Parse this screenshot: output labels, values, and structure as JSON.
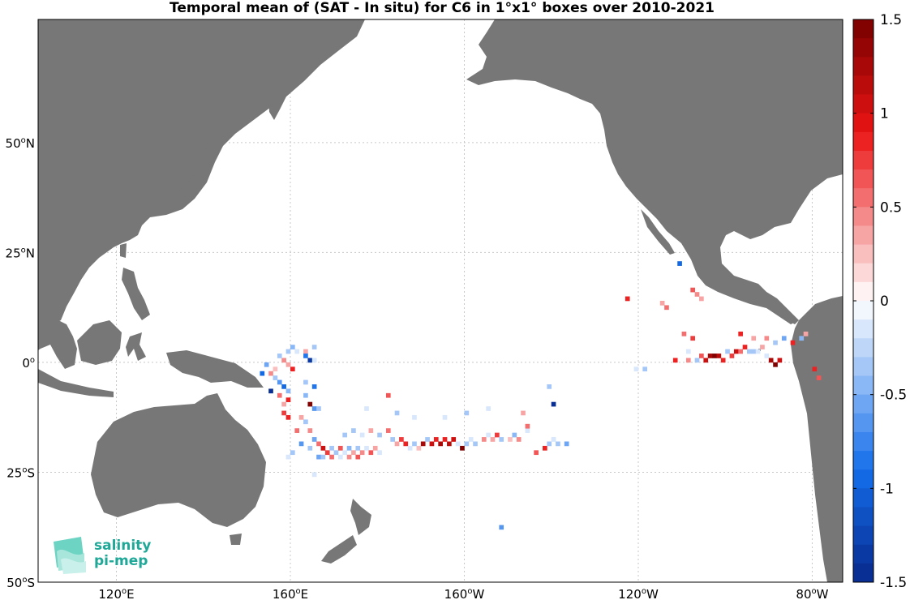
{
  "title": "Temporal mean of (SAT - In situ) for C6 in 1°x1° boxes over 2010-2021",
  "map": {
    "projection": "equirectangular",
    "lon_range": [
      102,
      287
    ],
    "lat_range": [
      -50,
      78
    ],
    "land_color": "#777777",
    "ocean_color": "#ffffff",
    "grid": true,
    "lat_ticks": [
      {
        "value": 50,
        "deg": "50",
        "hemi": "N"
      },
      {
        "value": 25,
        "deg": "25",
        "hemi": "N"
      },
      {
        "value": 0,
        "deg": "0",
        "hemi": ""
      },
      {
        "value": -25,
        "deg": "25",
        "hemi": "S"
      },
      {
        "value": -50,
        "deg": "50",
        "hemi": "S"
      }
    ],
    "lon_ticks": [
      {
        "value": 120,
        "deg": "120",
        "hemi": "E"
      },
      {
        "value": 160,
        "deg": "160",
        "hemi": "E"
      },
      {
        "value": 200,
        "deg": "160",
        "hemi": "W"
      },
      {
        "value": 240,
        "deg": "120",
        "hemi": "W"
      },
      {
        "value": 280,
        "deg": "80",
        "hemi": "W"
      }
    ]
  },
  "colorbar": {
    "min": -1.5,
    "max": 1.5,
    "levels": 30,
    "colormap": "blue-white-red",
    "negative_color": "#08288c",
    "positive_color": "#780000",
    "tick_values": [
      1.5,
      1,
      0.5,
      0,
      -0.5,
      -1,
      -1.5
    ],
    "tick_labels": [
      "1.5",
      "1",
      "0.5",
      "0",
      "-0.5",
      "-1",
      "-1.5"
    ]
  },
  "boxes": [
    {
      "lon": 159.5,
      "lat": 2.5,
      "v": -0.3
    },
    {
      "lon": 160.5,
      "lat": 3.5,
      "v": -0.5
    },
    {
      "lon": 161.5,
      "lat": 2.5,
      "v": -0.2
    },
    {
      "lon": 163.5,
      "lat": 2.5,
      "v": 0.3
    },
    {
      "lon": 163.5,
      "lat": 1.5,
      "v": -0.8
    },
    {
      "lon": 164.5,
      "lat": 0.5,
      "v": -1.4
    },
    {
      "lon": 165.5,
      "lat": 3.5,
      "v": -0.4
    },
    {
      "lon": 165.5,
      "lat": 0.5,
      "v": -0.2
    },
    {
      "lon": 158.5,
      "lat": 0.5,
      "v": 0.4
    },
    {
      "lon": 157.5,
      "lat": 1.5,
      "v": -0.3
    },
    {
      "lon": 159.5,
      "lat": -0.5,
      "v": 0.3
    },
    {
      "lon": 160.5,
      "lat": -1.5,
      "v": 0.9
    },
    {
      "lon": 156.5,
      "lat": -1.5,
      "v": 0.2
    },
    {
      "lon": 154.5,
      "lat": -0.5,
      "v": -0.6
    },
    {
      "lon": 153.5,
      "lat": -2.5,
      "v": -0.9
    },
    {
      "lon": 155.5,
      "lat": -2.5,
      "v": 0.4
    },
    {
      "lon": 156.5,
      "lat": -3.5,
      "v": -0.4
    },
    {
      "lon": 157.5,
      "lat": -4.5,
      "v": -0.7
    },
    {
      "lon": 158.5,
      "lat": -5.5,
      "v": -1.0
    },
    {
      "lon": 159.5,
      "lat": -6.5,
      "v": -0.5
    },
    {
      "lon": 155.5,
      "lat": -6.5,
      "v": -1.5
    },
    {
      "lon": 157.5,
      "lat": -7.5,
      "v": 0.5
    },
    {
      "lon": 159.5,
      "lat": -8.5,
      "v": 0.9
    },
    {
      "lon": 158.5,
      "lat": -9.5,
      "v": 0.3
    },
    {
      "lon": 158.5,
      "lat": -11.5,
      "v": 0.7
    },
    {
      "lon": 159.5,
      "lat": -12.5,
      "v": 0.9
    },
    {
      "lon": 163.5,
      "lat": -4.5,
      "v": -0.4
    },
    {
      "lon": 165.5,
      "lat": -5.5,
      "v": -0.8
    },
    {
      "lon": 163.5,
      "lat": -7.5,
      "v": -0.5
    },
    {
      "lon": 165.5,
      "lat": -10.5,
      "v": -0.7
    },
    {
      "lon": 164.5,
      "lat": -9.5,
      "v": 1.4
    },
    {
      "lon": 166.5,
      "lat": -10.5,
      "v": -0.3
    },
    {
      "lon": 162.5,
      "lat": -12.5,
      "v": 0.3
    },
    {
      "lon": 163.5,
      "lat": -13.5,
      "v": -0.4
    },
    {
      "lon": 161.5,
      "lat": -15.5,
      "v": 0.5
    },
    {
      "lon": 164.5,
      "lat": -15.5,
      "v": 0.4
    },
    {
      "lon": 165.5,
      "lat": -17.5,
      "v": -0.6
    },
    {
      "lon": 166.5,
      "lat": -18.5,
      "v": 0.5
    },
    {
      "lon": 167.5,
      "lat": -19.5,
      "v": 1.0
    },
    {
      "lon": 168.5,
      "lat": -20.5,
      "v": 0.7
    },
    {
      "lon": 169.5,
      "lat": -19.5,
      "v": -0.4
    },
    {
      "lon": 170.5,
      "lat": -20.5,
      "v": -0.3
    },
    {
      "lon": 171.5,
      "lat": -19.5,
      "v": 0.6
    },
    {
      "lon": 172.5,
      "lat": -20.5,
      "v": -0.2
    },
    {
      "lon": 173.5,
      "lat": -19.5,
      "v": -0.5
    },
    {
      "lon": 174.5,
      "lat": -20.5,
      "v": 0.3
    },
    {
      "lon": 175.5,
      "lat": -19.5,
      "v": -0.3
    },
    {
      "lon": 176.5,
      "lat": -20.5,
      "v": 0.4
    },
    {
      "lon": 177.5,
      "lat": -19.5,
      "v": -0.2
    },
    {
      "lon": 178.5,
      "lat": -20.5,
      "v": 0.6
    },
    {
      "lon": 179.5,
      "lat": -19.5,
      "v": 0.3
    },
    {
      "lon": 180.5,
      "lat": -20.5,
      "v": -0.2
    },
    {
      "lon": 166.5,
      "lat": -21.5,
      "v": -0.6
    },
    {
      "lon": 167.5,
      "lat": -21.5,
      "v": -0.3
    },
    {
      "lon": 169.5,
      "lat": -21.5,
      "v": 0.5
    },
    {
      "lon": 171.5,
      "lat": -21.5,
      "v": -0.2
    },
    {
      "lon": 173.5,
      "lat": -21.5,
      "v": 0.4
    },
    {
      "lon": 175.5,
      "lat": -21.5,
      "v": 0.6
    },
    {
      "lon": 160.5,
      "lat": -20.5,
      "v": -0.3
    },
    {
      "lon": 162.5,
      "lat": -18.5,
      "v": -0.7
    },
    {
      "lon": 164.5,
      "lat": -19.5,
      "v": -0.4
    },
    {
      "lon": 172.5,
      "lat": -16.5,
      "v": -0.3
    },
    {
      "lon": 174.5,
      "lat": -15.5,
      "v": -0.4
    },
    {
      "lon": 176.5,
      "lat": -16.5,
      "v": -0.2
    },
    {
      "lon": 178.5,
      "lat": -15.5,
      "v": 0.3
    },
    {
      "lon": 180.5,
      "lat": -16.5,
      "v": -0.3
    },
    {
      "lon": 182.5,
      "lat": -15.5,
      "v": 0.5
    },
    {
      "lon": 183.5,
      "lat": -17.5,
      "v": -0.4
    },
    {
      "lon": 184.5,
      "lat": -18.5,
      "v": 0.3
    },
    {
      "lon": 185.5,
      "lat": -17.5,
      "v": 0.7
    },
    {
      "lon": 186.5,
      "lat": -18.5,
      "v": 0.9
    },
    {
      "lon": 187.5,
      "lat": -19.5,
      "v": -0.2
    },
    {
      "lon": 188.5,
      "lat": -18.5,
      "v": -0.3
    },
    {
      "lon": 189.5,
      "lat": -19.5,
      "v": 0.2
    },
    {
      "lon": 190.5,
      "lat": -18.5,
      "v": 1.3
    },
    {
      "lon": 191.5,
      "lat": -17.5,
      "v": -0.3
    },
    {
      "lon": 192.5,
      "lat": -18.5,
      "v": 1.0
    },
    {
      "lon": 193.5,
      "lat": -17.5,
      "v": 0.9
    },
    {
      "lon": 194.5,
      "lat": -18.5,
      "v": 1.2
    },
    {
      "lon": 195.5,
      "lat": -17.5,
      "v": 0.8
    },
    {
      "lon": 196.5,
      "lat": -18.5,
      "v": 1.1
    },
    {
      "lon": 197.5,
      "lat": -17.5,
      "v": 1.0
    },
    {
      "lon": 198.5,
      "lat": -18.5,
      "v": -0.2
    },
    {
      "lon": 199.5,
      "lat": -19.5,
      "v": 1.4
    },
    {
      "lon": 200.5,
      "lat": -18.5,
      "v": -0.3
    },
    {
      "lon": 201.5,
      "lat": -17.5,
      "v": -0.2
    },
    {
      "lon": 202.5,
      "lat": -18.5,
      "v": -0.4
    },
    {
      "lon": 204.5,
      "lat": -17.5,
      "v": 0.4
    },
    {
      "lon": 205.5,
      "lat": -16.5,
      "v": -0.2
    },
    {
      "lon": 206.5,
      "lat": -17.5,
      "v": 0.3
    },
    {
      "lon": 207.5,
      "lat": -16.5,
      "v": 0.7
    },
    {
      "lon": 208.5,
      "lat": -17.5,
      "v": -0.3
    },
    {
      "lon": 210.5,
      "lat": -17.5,
      "v": 0.2
    },
    {
      "lon": 211.5,
      "lat": -16.5,
      "v": -0.5
    },
    {
      "lon": 212.5,
      "lat": -17.5,
      "v": 0.4
    },
    {
      "lon": 214.5,
      "lat": -15.5,
      "v": -0.2
    },
    {
      "lon": 216.5,
      "lat": -20.5,
      "v": 0.6
    },
    {
      "lon": 218.5,
      "lat": -19.5,
      "v": 0.8
    },
    {
      "lon": 219.5,
      "lat": -18.5,
      "v": -0.3
    },
    {
      "lon": 220.5,
      "lat": -17.5,
      "v": -0.2
    },
    {
      "lon": 221.5,
      "lat": -18.5,
      "v": -0.4
    },
    {
      "lon": 223.5,
      "lat": -18.5,
      "v": -0.6
    },
    {
      "lon": 177.5,
      "lat": -10.5,
      "v": -0.2
    },
    {
      "lon": 182.5,
      "lat": -7.5,
      "v": 0.6
    },
    {
      "lon": 184.5,
      "lat": -11.5,
      "v": -0.3
    },
    {
      "lon": 188.5,
      "lat": -12.5,
      "v": -0.2
    },
    {
      "lon": 195.5,
      "lat": -12.5,
      "v": -0.2
    },
    {
      "lon": 200.5,
      "lat": -11.5,
      "v": -0.3
    },
    {
      "lon": 205.5,
      "lat": -10.5,
      "v": -0.2
    },
    {
      "lon": 213.5,
      "lat": -11.5,
      "v": 0.3
    },
    {
      "lon": 214.5,
      "lat": -14.5,
      "v": 0.5
    },
    {
      "lon": 219.5,
      "lat": -5.5,
      "v": -0.4
    },
    {
      "lon": 220.5,
      "lat": -9.5,
      "v": -1.5
    },
    {
      "lon": 208.5,
      "lat": -37.5,
      "v": -0.7
    },
    {
      "lon": 165.5,
      "lat": -25.5,
      "v": -0.2
    },
    {
      "lon": 159.5,
      "lat": -21.5,
      "v": -0.2
    },
    {
      "lon": 237.5,
      "lat": 14.5,
      "v": 0.9
    },
    {
      "lon": 245.5,
      "lat": 13.5,
      "v": 0.3
    },
    {
      "lon": 246.5,
      "lat": 12.5,
      "v": 0.5
    },
    {
      "lon": 249.5,
      "lat": 22.5,
      "v": -0.9
    },
    {
      "lon": 252.5,
      "lat": 16.5,
      "v": 0.6
    },
    {
      "lon": 253.5,
      "lat": 15.5,
      "v": 0.4
    },
    {
      "lon": 254.5,
      "lat": 14.5,
      "v": 0.3
    },
    {
      "lon": 250.5,
      "lat": 6.5,
      "v": 0.5
    },
    {
      "lon": 252.5,
      "lat": 5.5,
      "v": 0.7
    },
    {
      "lon": 251.5,
      "lat": 2.5,
      "v": -0.2
    },
    {
      "lon": 248.5,
      "lat": 0.5,
      "v": 0.9
    },
    {
      "lon": 251.5,
      "lat": 0.5,
      "v": 0.4
    },
    {
      "lon": 253.5,
      "lat": 0.5,
      "v": -0.3
    },
    {
      "lon": 254.5,
      "lat": 1.5,
      "v": 0.6
    },
    {
      "lon": 255.5,
      "lat": 0.5,
      "v": 1.0
    },
    {
      "lon": 256.5,
      "lat": 1.5,
      "v": 1.2
    },
    {
      "lon": 257.5,
      "lat": 1.5,
      "v": 1.4
    },
    {
      "lon": 258.5,
      "lat": 1.5,
      "v": 1.1
    },
    {
      "lon": 259.5,
      "lat": 0.5,
      "v": 0.9
    },
    {
      "lon": 260.5,
      "lat": 2.5,
      "v": -0.3
    },
    {
      "lon": 261.5,
      "lat": 1.5,
      "v": 0.7
    },
    {
      "lon": 262.5,
      "lat": 2.5,
      "v": 1.0
    },
    {
      "lon": 263.5,
      "lat": 2.5,
      "v": 0.5
    },
    {
      "lon": 264.5,
      "lat": 3.5,
      "v": 0.9
    },
    {
      "lon": 265.5,
      "lat": 2.5,
      "v": -0.4
    },
    {
      "lon": 266.5,
      "lat": 2.5,
      "v": -0.3
    },
    {
      "lon": 267.5,
      "lat": 2.5,
      "v": -0.2
    },
    {
      "lon": 268.5,
      "lat": 3.5,
      "v": 0.3
    },
    {
      "lon": 269.5,
      "lat": 1.5,
      "v": -0.2
    },
    {
      "lon": 270.5,
      "lat": 0.5,
      "v": 1.3
    },
    {
      "lon": 271.5,
      "lat": -0.5,
      "v": 1.4
    },
    {
      "lon": 272.5,
      "lat": 0.5,
      "v": 1.0
    },
    {
      "lon": 263.5,
      "lat": 6.5,
      "v": 0.8
    },
    {
      "lon": 266.5,
      "lat": 5.5,
      "v": 0.3
    },
    {
      "lon": 269.5,
      "lat": 5.5,
      "v": 0.4
    },
    {
      "lon": 271.5,
      "lat": 4.5,
      "v": -0.3
    },
    {
      "lon": 273.5,
      "lat": 5.5,
      "v": -0.6
    },
    {
      "lon": 275.5,
      "lat": 4.5,
      "v": 0.9
    },
    {
      "lon": 277.5,
      "lat": 5.5,
      "v": -0.5
    },
    {
      "lon": 278.5,
      "lat": 6.5,
      "v": 0.3
    },
    {
      "lon": 239.5,
      "lat": -1.5,
      "v": -0.2
    },
    {
      "lon": 241.5,
      "lat": -1.5,
      "v": -0.3
    },
    {
      "lon": 280.5,
      "lat": -1.5,
      "v": 0.8
    },
    {
      "lon": 281.5,
      "lat": -3.5,
      "v": 0.6
    }
  ],
  "logo": {
    "line1": "salinity",
    "line2": "pi-mep"
  }
}
